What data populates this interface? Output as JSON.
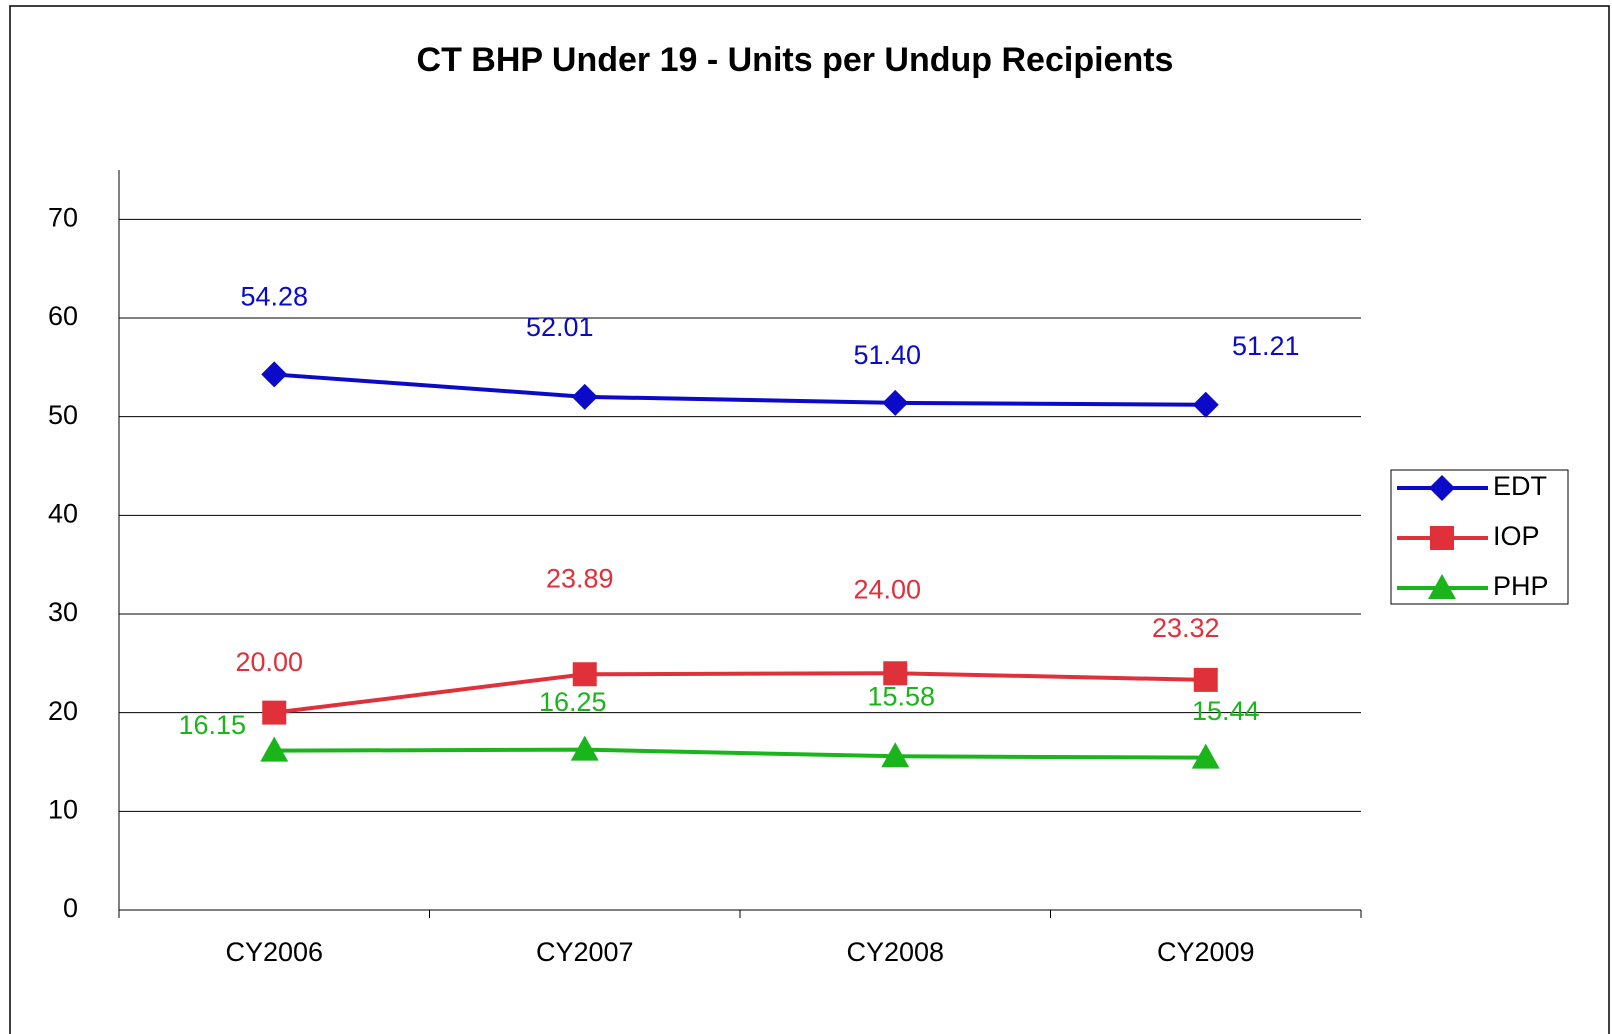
{
  "chart_data": {
    "type": "line",
    "title": "CT BHP Under 19 - Units per Undup Recipients",
    "categories": [
      "CY2006",
      "CY2007",
      "CY2008",
      "CY2009"
    ],
    "series": [
      {
        "name": "EDT",
        "color": "#0a0ac8",
        "marker": "diamond",
        "values": [
          54.28,
          52.01,
          51.4,
          51.21
        ],
        "value_labels": [
          "54.28",
          "52.01",
          "51.40",
          "51.21"
        ]
      },
      {
        "name": "IOP",
        "color": "#e0303a",
        "marker": "square",
        "values": [
          20,
          23.89,
          24,
          23.32
        ],
        "value_labels": [
          "20.00",
          "23.89",
          "24.00",
          "23.32"
        ]
      },
      {
        "name": "PHP",
        "color": "#1ab51a",
        "marker": "triangle",
        "values": [
          16.15,
          16.25,
          15.58,
          15.44
        ],
        "value_labels": [
          "16.15",
          "16.25",
          "15.58",
          "15.44"
        ]
      }
    ],
    "ylim": [
      0,
      75
    ],
    "yticks": [
      0,
      10,
      20,
      30,
      40,
      50,
      60,
      70
    ],
    "grid": true,
    "legend": "right"
  }
}
